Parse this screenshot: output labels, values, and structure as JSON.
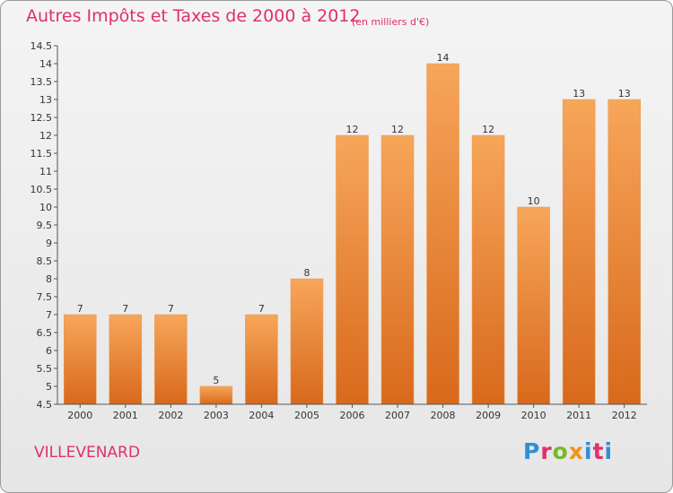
{
  "header": {
    "title": "Autres Impôts et Taxes de 2000 à 2012",
    "subtitle": "(en milliers d'€)"
  },
  "footer": {
    "town": "VILLEVENARD",
    "logo": [
      "P",
      "r",
      "o",
      "x",
      "i",
      "t",
      "i"
    ]
  },
  "colors": {
    "title": "#e0306a",
    "bar_light": "#f7a65a",
    "bar_dark": "#d8691c",
    "logo_letters": [
      "#2e8fd6",
      "#e0306a",
      "#79b829",
      "#f0941c",
      "#2e8fd6",
      "#e0306a",
      "#2e8fd6"
    ]
  },
  "chart_data": {
    "type": "bar",
    "categories": [
      "2000",
      "2001",
      "2002",
      "2003",
      "2004",
      "2005",
      "2006",
      "2007",
      "2008",
      "2009",
      "2010",
      "2011",
      "2012"
    ],
    "values": [
      7,
      7,
      7,
      5,
      7,
      8,
      12,
      12,
      14,
      12,
      10,
      13,
      13
    ],
    "data_labels": [
      "7",
      "7",
      "7",
      "5",
      "7",
      "8",
      "12",
      "12",
      "14",
      "12",
      "10",
      "13",
      "13"
    ],
    "title": "Autres Impôts et Taxes de 2000 à 2012",
    "ylim": [
      4.5,
      14.5
    ],
    "yticks": [
      "4.5",
      "5",
      "5.5",
      "6",
      "6.5",
      "7",
      "7.5",
      "8",
      "8.5",
      "9",
      "9.5",
      "10",
      "10.5",
      "11",
      "11.5",
      "12",
      "12.5",
      "13",
      "13.5",
      "14",
      "14.5"
    ],
    "grid": false,
    "legend": "none"
  }
}
